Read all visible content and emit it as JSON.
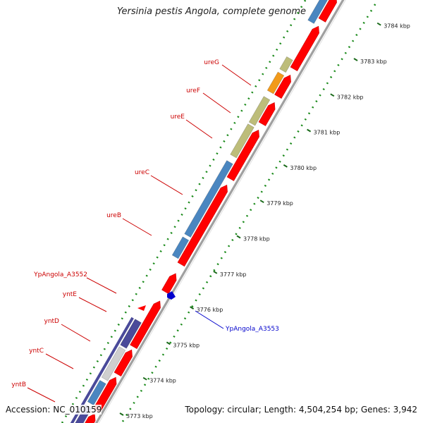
{
  "title": "Yersinia pestis Angola, complete genome",
  "footer": {
    "accession": "Accession: NC_010159",
    "summary": "Topology: circular; Length: 4,504,254 bp; Genes: 3,942"
  },
  "colors": {
    "cds_arrow": "#ff0000",
    "backbone": "#a0a0a0",
    "dots": "#1a8a1a",
    "label_red": "#cc0000",
    "label_blue": "#0000cc",
    "ure_blue": "#4a86c0",
    "ure_olive": "#bdbd7a",
    "ure_orange": "#f29a1a",
    "ynt_purple": "#4a4a9a",
    "ynt_grey": "#cfcfcf"
  },
  "scale": {
    "unit": "kbp",
    "ticks": [
      "3773 kbp",
      "3774 kbp",
      "3775 kbp",
      "3776 kbp",
      "3777 kbp",
      "3778 kbp",
      "3779 kbp",
      "3780 kbp",
      "3781 kbp",
      "3782 kbp",
      "3783 kbp",
      "3784 kbp"
    ]
  },
  "genes": [
    {
      "name": "ureG",
      "label_color": "#cc0000",
      "feature_color": "#f29a1a",
      "strand": "+"
    },
    {
      "name": "ureF",
      "label_color": "#cc0000",
      "feature_color": "#bdbd7a",
      "strand": "+"
    },
    {
      "name": "ureE",
      "label_color": "#cc0000",
      "feature_color": "#bdbd7a",
      "strand": "+"
    },
    {
      "name": "ureC",
      "label_color": "#cc0000",
      "feature_color": "#4a86c0",
      "strand": "+"
    },
    {
      "name": "ureB",
      "label_color": "#cc0000",
      "feature_color": "#4a86c0",
      "strand": "+"
    },
    {
      "name": "YpAngola_A3552",
      "label_color": "#cc0000",
      "feature_color": "#ff0000",
      "strand": "+"
    },
    {
      "name": "yntE",
      "label_color": "#cc0000",
      "feature_color": "#4a4a9a",
      "strand": "+"
    },
    {
      "name": "yntD",
      "label_color": "#cc0000",
      "feature_color": "#4a86c0",
      "strand": "+"
    },
    {
      "name": "yntC",
      "label_color": "#cc0000",
      "feature_color": "#cfcfcf",
      "strand": "+"
    },
    {
      "name": "yntB",
      "label_color": "#cc0000",
      "feature_color": "#4a4a9a",
      "strand": "+"
    },
    {
      "name": "YpAngola_A3553",
      "label_color": "#0000cc",
      "feature_color": "#0000cc",
      "strand": "-"
    }
  ]
}
